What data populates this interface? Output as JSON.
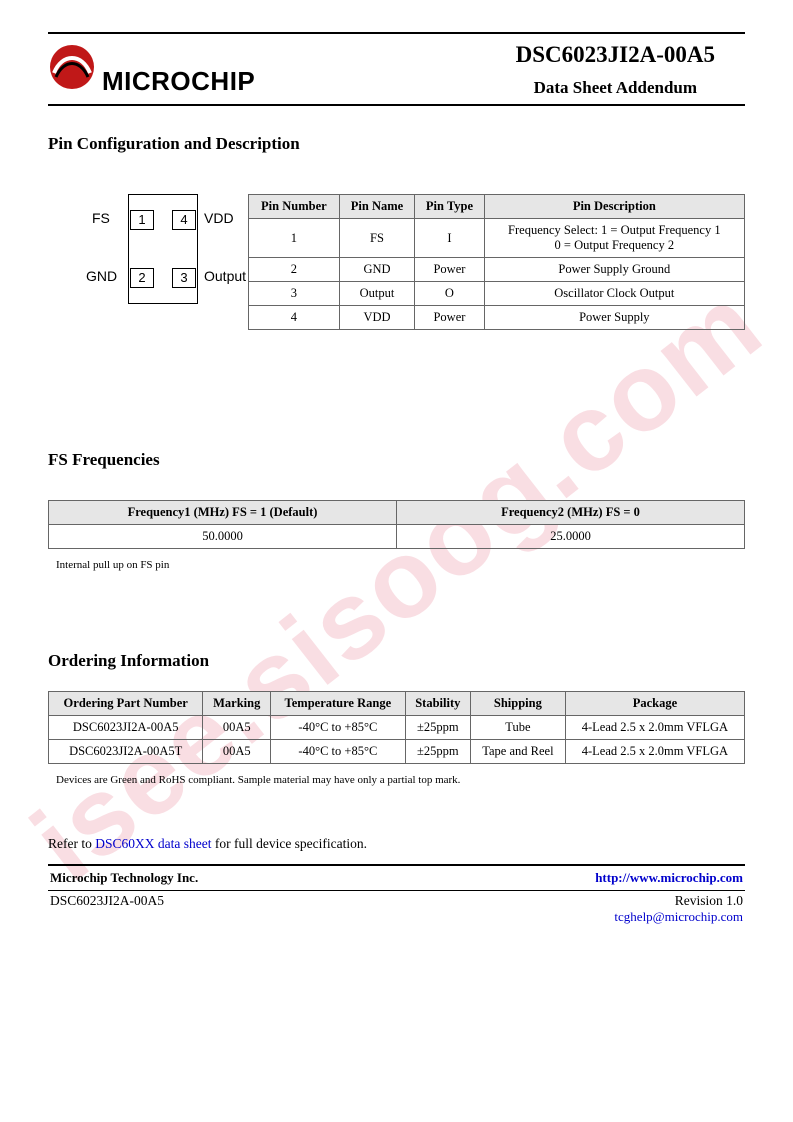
{
  "watermark": "isee.sisoog.com",
  "header": {
    "logo_text": "MICROCHIP",
    "part_number": "DSC6023JI2A-00A5",
    "subtitle": "Data Sheet Addendum"
  },
  "sections": {
    "pin_config_title": "Pin Configuration and Description",
    "fs_freq_title": "FS Frequencies",
    "ordering_title": "Ordering Information"
  },
  "pin_diagram": {
    "labels": {
      "fs": "FS",
      "vdd": "VDD",
      "gnd": "GND",
      "out": "Output"
    },
    "pins": {
      "p1": "1",
      "p2": "2",
      "p3": "3",
      "p4": "4"
    }
  },
  "pin_table": {
    "headers": [
      "Pin Number",
      "Pin Name",
      "Pin Type",
      "Pin Description"
    ],
    "rows": [
      {
        "num": "1",
        "name": "FS",
        "type": "I",
        "desc": "Frequency Select: 1 = Output Frequency 1\n0 = Output Frequency 2"
      },
      {
        "num": "2",
        "name": "GND",
        "type": "Power",
        "desc": "Power Supply Ground"
      },
      {
        "num": "3",
        "name": "Output",
        "type": "O",
        "desc": "Oscillator Clock Output"
      },
      {
        "num": "4",
        "name": "VDD",
        "type": "Power",
        "desc": "Power Supply"
      }
    ]
  },
  "fs_table": {
    "headers": [
      "Frequency1 (MHz) FS = 1 (Default)",
      "Frequency2 (MHz) FS = 0"
    ],
    "row": [
      "50.0000",
      "25.0000"
    ],
    "note": "Internal pull up on FS pin"
  },
  "order_table": {
    "headers": [
      "Ordering Part Number",
      "Marking",
      "Temperature Range",
      "Stability",
      "Shipping",
      "Package"
    ],
    "rows": [
      [
        "DSC6023JI2A-00A5",
        "00A5",
        "-40°C to +85°C",
        "±25ppm",
        "Tube",
        "4-Lead 2.5 x 2.0mm VFLGA"
      ],
      [
        "DSC6023JI2A-00A5T",
        "00A5",
        "-40°C to +85°C",
        "±25ppm",
        "Tape and Reel",
        "4-Lead 2.5 x 2.0mm VFLGA"
      ]
    ],
    "note": "Devices are Green and RoHS compliant. Sample material may have only a partial top mark."
  },
  "ref": {
    "prefix": "Refer to ",
    "link": "DSC60XX data sheet",
    "suffix": " for full device specification."
  },
  "footer": {
    "company": "Microchip Technology Inc.",
    "url": "http://www.microchip.com",
    "part": "DSC6023JI2A-00A5",
    "revision": "Revision 1.0",
    "email": "tcghelp@microchip.com"
  }
}
